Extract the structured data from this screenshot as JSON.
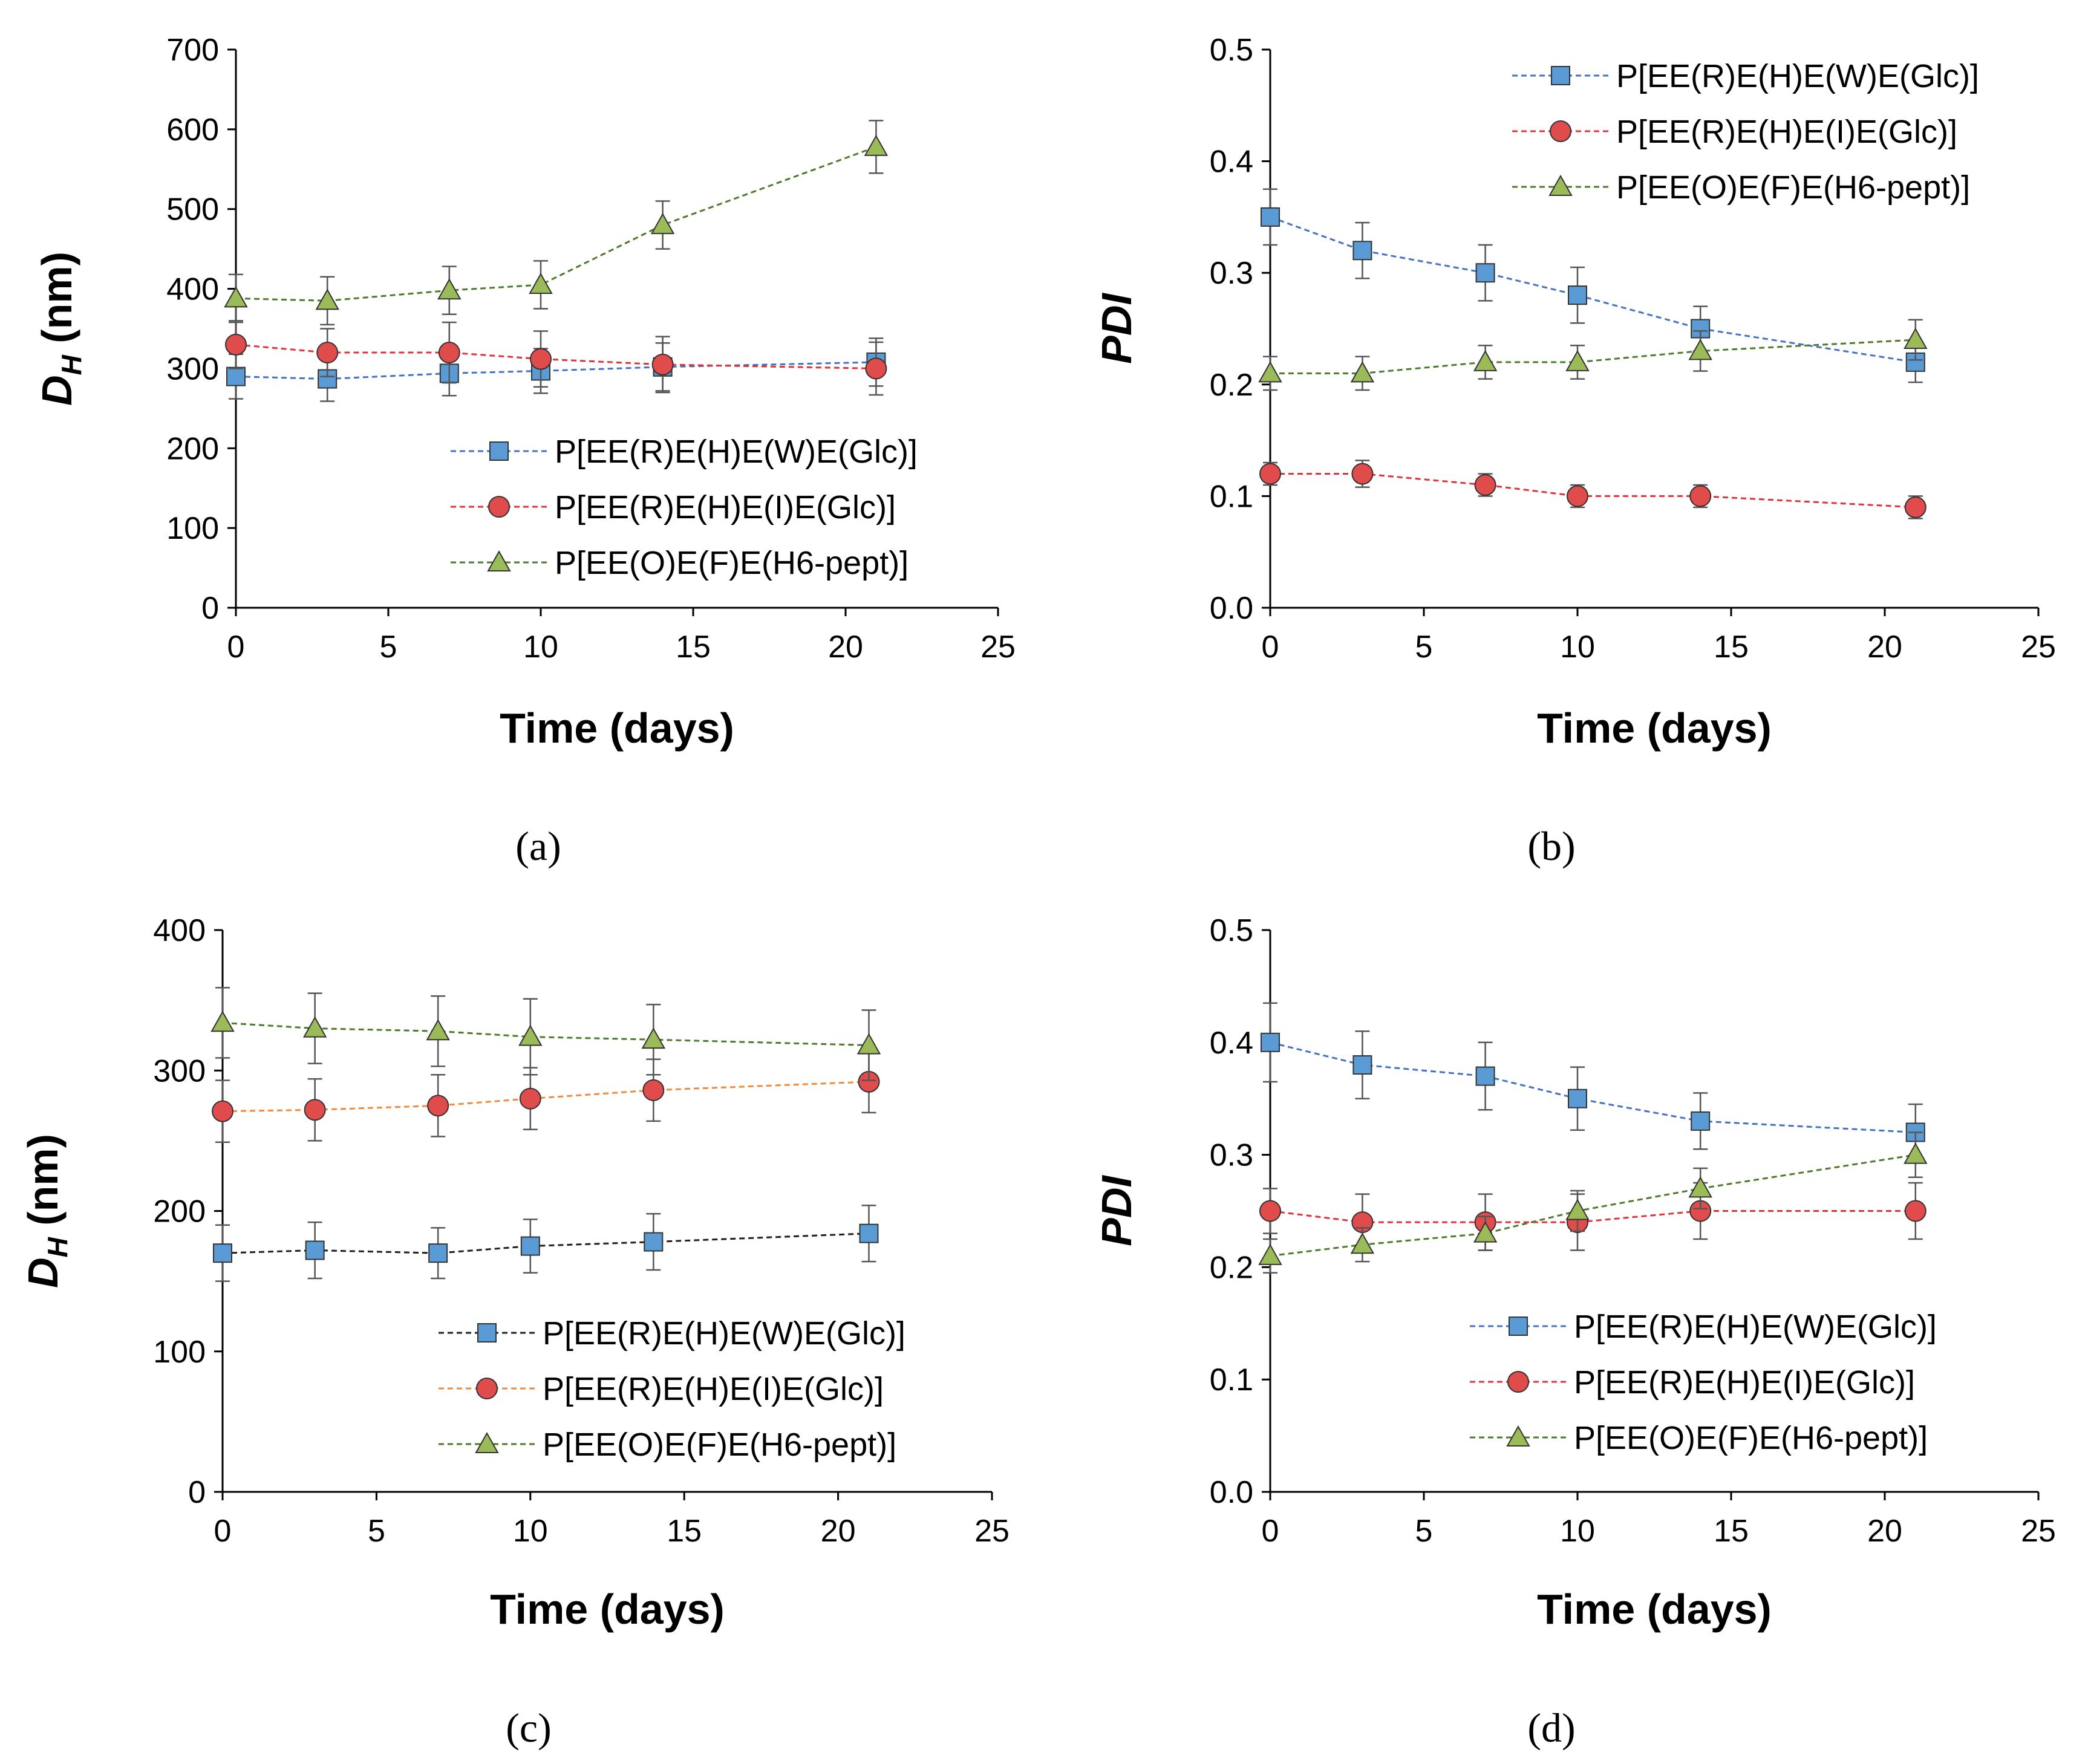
{
  "chart_data": [
    {
      "type": "line",
      "panel_label": "(a)",
      "xlabel": "Time (days)",
      "ylabel": {
        "main": "D",
        "sub": "H",
        "unit": " (nm)"
      },
      "xlim": [
        0,
        25
      ],
      "ylim": [
        0,
        700
      ],
      "x_ticks": [
        0,
        5,
        10,
        15,
        20,
        25
      ],
      "y_ticks": [
        0,
        100,
        200,
        300,
        400,
        500,
        600,
        700
      ],
      "y_decimals": 0,
      "legend_position": "bottom-right",
      "x": [
        0,
        3,
        7,
        10,
        14,
        21
      ],
      "series": [
        {
          "name": "P[EE(R)E(H)E(W)E(Glc)]",
          "marker": "square",
          "color": "#4472c4",
          "fill": "#5b9bd5",
          "values": [
            290,
            287,
            294,
            297,
            302,
            308
          ],
          "errors": [
            28,
            28,
            28,
            28,
            30,
            30
          ]
        },
        {
          "name": "P[EE(R)E(H)E(I)E(Glc)]",
          "marker": "circle",
          "color": "#e0333a",
          "fill": "#e04b4b",
          "values": [
            330,
            320,
            320,
            312,
            305,
            300
          ],
          "errors": [
            30,
            30,
            38,
            35,
            35,
            33
          ]
        },
        {
          "name": "P[EE(O)E(F)E(H6-pept)]",
          "marker": "triangle",
          "color": "#4e7a2c",
          "fill": "#9bbb59",
          "values": [
            388,
            385,
            398,
            405,
            480,
            578
          ],
          "errors": [
            30,
            30,
            30,
            30,
            30,
            33
          ]
        }
      ]
    },
    {
      "type": "line",
      "panel_label": "(b)",
      "xlabel": "Time (days)",
      "ylabel": {
        "main": "PDI",
        "sub": "",
        "unit": ""
      },
      "xlim": [
        0,
        25
      ],
      "ylim": [
        0,
        0.5
      ],
      "x_ticks": [
        0,
        5,
        10,
        15,
        20,
        25
      ],
      "y_ticks": [
        0,
        0.1,
        0.2,
        0.3,
        0.4,
        0.5
      ],
      "y_decimals": 1,
      "legend_position": "top-right",
      "x": [
        0,
        3,
        7,
        10,
        14,
        21
      ],
      "series": [
        {
          "name": "P[EE(R)E(H)E(W)E(Glc)]",
          "marker": "square",
          "color": "#4472c4",
          "fill": "#5b9bd5",
          "values": [
            0.35,
            0.32,
            0.3,
            0.28,
            0.25,
            0.22
          ],
          "errors": [
            0.025,
            0.025,
            0.025,
            0.025,
            0.02,
            0.018
          ]
        },
        {
          "name": "P[EE(R)E(H)E(I)E(Glc)]",
          "marker": "circle",
          "color": "#e0333a",
          "fill": "#e04b4b",
          "values": [
            0.12,
            0.12,
            0.11,
            0.1,
            0.1,
            0.09
          ],
          "errors": [
            0.01,
            0.012,
            0.01,
            0.01,
            0.01,
            0.01
          ]
        },
        {
          "name": "P[EE(O)E(F)E(H6-pept)]",
          "marker": "triangle",
          "color": "#4e7a2c",
          "fill": "#9bbb59",
          "values": [
            0.21,
            0.21,
            0.22,
            0.22,
            0.23,
            0.24
          ],
          "errors": [
            0.015,
            0.015,
            0.015,
            0.015,
            0.018,
            0.018
          ]
        }
      ]
    },
    {
      "type": "line",
      "panel_label": "(c)",
      "xlabel": "Time (days)",
      "ylabel": {
        "main": "D",
        "sub": "H",
        "unit": " (nm)"
      },
      "xlim": [
        0,
        25
      ],
      "ylim": [
        0,
        400
      ],
      "x_ticks": [
        0,
        5,
        10,
        15,
        20,
        25
      ],
      "y_ticks": [
        0,
        100,
        200,
        300,
        400
      ],
      "y_decimals": 0,
      "legend_position": "bottom-right",
      "x": [
        0,
        3,
        7,
        10,
        14,
        21
      ],
      "series": [
        {
          "name": "P[EE(R)E(H)E(W)E(Glc)]",
          "marker": "square",
          "color": "#1f1f1f",
          "fill": "#5b9bd5",
          "values": [
            170,
            172,
            170,
            175,
            178,
            184
          ],
          "errors": [
            20,
            20,
            18,
            19,
            20,
            20
          ]
        },
        {
          "name": "P[EE(R)E(H)E(I)E(Glc)]",
          "marker": "circle",
          "color": "#f08a3c",
          "fill": "#e04b4b",
          "values": [
            271,
            272,
            275,
            280,
            286,
            292
          ],
          "errors": [
            22,
            22,
            22,
            22,
            22,
            22
          ]
        },
        {
          "name": "P[EE(O)E(F)E(H6-pept)]",
          "marker": "triangle",
          "color": "#4e7a2c",
          "fill": "#9bbb59",
          "values": [
            334,
            330,
            328,
            324,
            322,
            318
          ],
          "errors": [
            25,
            25,
            25,
            27,
            25,
            25
          ]
        }
      ]
    },
    {
      "type": "line",
      "panel_label": "(d)",
      "xlabel": "Time (days)",
      "ylabel": {
        "main": "PDI",
        "sub": "",
        "unit": ""
      },
      "xlim": [
        0,
        25
      ],
      "ylim": [
        0,
        0.5
      ],
      "x_ticks": [
        0,
        5,
        10,
        15,
        20,
        25
      ],
      "y_ticks": [
        0,
        0.1,
        0.2,
        0.3,
        0.4,
        0.5
      ],
      "y_decimals": 1,
      "legend_position": "bottom-right",
      "x": [
        0,
        3,
        7,
        10,
        14,
        21
      ],
      "series": [
        {
          "name": "P[EE(R)E(H)E(W)E(Glc)]",
          "marker": "square",
          "color": "#4472c4",
          "fill": "#5b9bd5",
          "values": [
            0.4,
            0.38,
            0.37,
            0.35,
            0.33,
            0.32
          ],
          "errors": [
            0.035,
            0.03,
            0.03,
            0.028,
            0.025,
            0.025
          ]
        },
        {
          "name": "P[EE(R)E(H)E(I)E(Glc)]",
          "marker": "circle",
          "color": "#e0333a",
          "fill": "#e04b4b",
          "values": [
            0.25,
            0.24,
            0.24,
            0.24,
            0.25,
            0.25
          ],
          "errors": [
            0.02,
            0.025,
            0.025,
            0.025,
            0.025,
            0.025
          ]
        },
        {
          "name": "P[EE(O)E(F)E(H6-pept)]",
          "marker": "triangle",
          "color": "#4e7a2c",
          "fill": "#9bbb59",
          "values": [
            0.21,
            0.22,
            0.23,
            0.25,
            0.27,
            0.3
          ],
          "errors": [
            0.015,
            0.015,
            0.015,
            0.018,
            0.018,
            0.02
          ]
        }
      ]
    }
  ]
}
